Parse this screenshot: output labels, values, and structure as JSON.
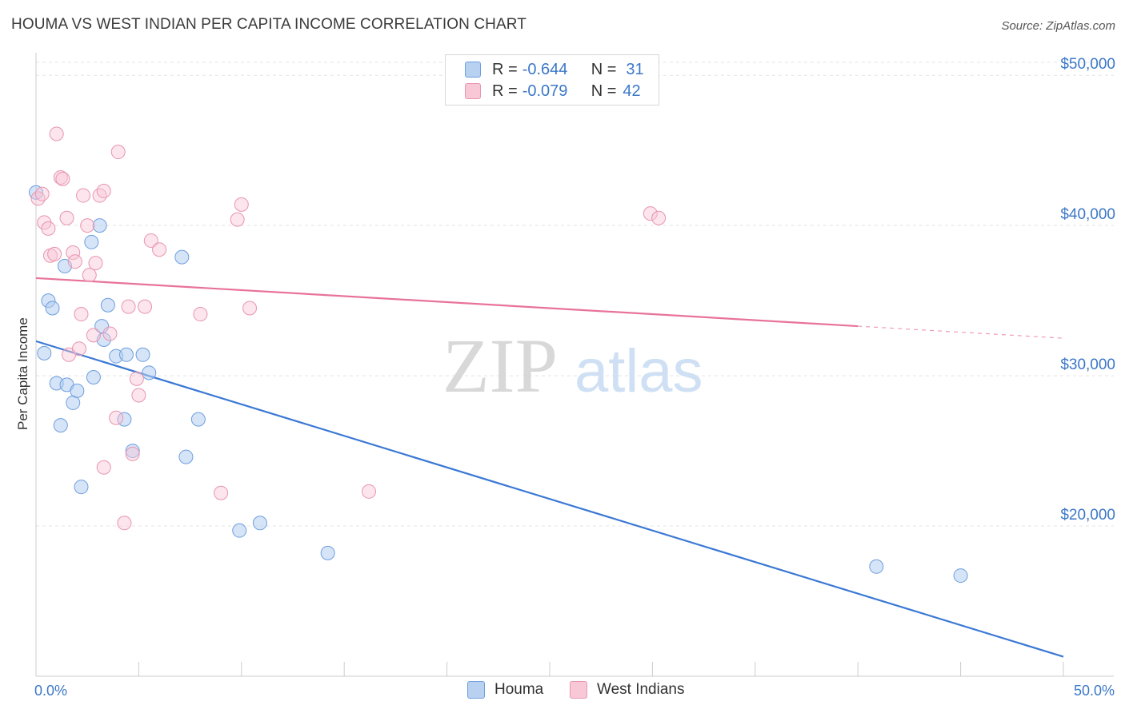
{
  "header": {
    "title": "HOUMA VS WEST INDIAN PER CAPITA INCOME CORRELATION CHART",
    "source": "Source: ZipAtlas.com"
  },
  "legend": {
    "houma": {
      "r_label": "R =",
      "r_value": "-0.644",
      "n_label": "N =",
      "n_value": "31"
    },
    "west_indians": {
      "r_label": "R =",
      "r_value": "-0.079",
      "n_label": "N =",
      "n_value": "42"
    }
  },
  "watermark": {
    "zip": "ZIP",
    "atlas": "atlas"
  },
  "colors": {
    "houma": "#3a78d4",
    "west_indians": "#e8739a",
    "tick": "#3c78c8"
  },
  "chart_data": {
    "type": "scatter",
    "title": "HOUMA VS WEST INDIAN PER CAPITA INCOME CORRELATION CHART",
    "xlabel": "",
    "ylabel": "Per Capita Income",
    "xlim": [
      0,
      50
    ],
    "ylim": [
      10000,
      51500
    ],
    "x_tick_labels": [
      "0.0%",
      "50.0%"
    ],
    "y_ticks": [
      {
        "value": 20000,
        "label": "$20,000"
      },
      {
        "value": 30000,
        "label": "$30,000"
      },
      {
        "value": 40000,
        "label": "$40,000"
      },
      {
        "value": 50000,
        "label": "$50,000"
      }
    ],
    "series": [
      {
        "name": "Houma",
        "color": "#3a78d4",
        "points": [
          [
            0.0,
            42200
          ],
          [
            0.4,
            31500
          ],
          [
            0.6,
            35000
          ],
          [
            0.8,
            34500
          ],
          [
            1.0,
            29500
          ],
          [
            1.2,
            26700
          ],
          [
            1.4,
            37300
          ],
          [
            1.5,
            29400
          ],
          [
            1.8,
            28200
          ],
          [
            2.0,
            29000
          ],
          [
            2.2,
            22600
          ],
          [
            2.7,
            38900
          ],
          [
            2.8,
            29900
          ],
          [
            3.1,
            40000
          ],
          [
            3.2,
            33300
          ],
          [
            3.3,
            32400
          ],
          [
            3.5,
            34700
          ],
          [
            3.9,
            31300
          ],
          [
            4.3,
            27100
          ],
          [
            4.4,
            31400
          ],
          [
            4.7,
            25000
          ],
          [
            5.2,
            31400
          ],
          [
            5.5,
            30200
          ],
          [
            7.1,
            37900
          ],
          [
            7.3,
            24600
          ],
          [
            7.9,
            27100
          ],
          [
            9.9,
            19700
          ],
          [
            10.9,
            20200
          ],
          [
            14.2,
            18200
          ],
          [
            40.9,
            17300
          ],
          [
            45.0,
            16700
          ]
        ],
        "trend": {
          "x": [
            0,
            50
          ],
          "y": [
            32300,
            11300
          ]
        }
      },
      {
        "name": "West Indians",
        "color": "#e8739a",
        "points": [
          [
            0.1,
            41800
          ],
          [
            0.3,
            42100
          ],
          [
            0.4,
            40200
          ],
          [
            0.6,
            39800
          ],
          [
            0.7,
            38000
          ],
          [
            0.9,
            38100
          ],
          [
            1.0,
            46100
          ],
          [
            1.2,
            43200
          ],
          [
            1.3,
            43100
          ],
          [
            1.5,
            40500
          ],
          [
            1.6,
            31400
          ],
          [
            1.8,
            38200
          ],
          [
            1.9,
            37600
          ],
          [
            2.1,
            31800
          ],
          [
            2.2,
            34100
          ],
          [
            2.3,
            42000
          ],
          [
            2.5,
            40000
          ],
          [
            2.6,
            36700
          ],
          [
            2.8,
            32700
          ],
          [
            2.9,
            37500
          ],
          [
            3.1,
            42000
          ],
          [
            3.3,
            42300
          ],
          [
            3.6,
            32800
          ],
          [
            3.9,
            27200
          ],
          [
            4.0,
            44900
          ],
          [
            4.3,
            20200
          ],
          [
            4.5,
            34600
          ],
          [
            4.7,
            24800
          ],
          [
            4.9,
            29800
          ],
          [
            5.0,
            28700
          ],
          [
            5.3,
            34600
          ],
          [
            5.6,
            39000
          ],
          [
            6.0,
            38400
          ],
          [
            3.3,
            23900
          ],
          [
            8.0,
            34100
          ],
          [
            9.0,
            22200
          ],
          [
            9.8,
            40400
          ],
          [
            10.0,
            41400
          ],
          [
            10.4,
            34500
          ],
          [
            16.2,
            22300
          ],
          [
            29.9,
            40800
          ],
          [
            30.3,
            40500
          ]
        ],
        "trend": {
          "x": [
            0,
            40
          ],
          "y": [
            36500,
            33300
          ]
        },
        "trend_extension": {
          "x": [
            40,
            50
          ],
          "y": [
            33300,
            32500
          ]
        }
      }
    ]
  }
}
